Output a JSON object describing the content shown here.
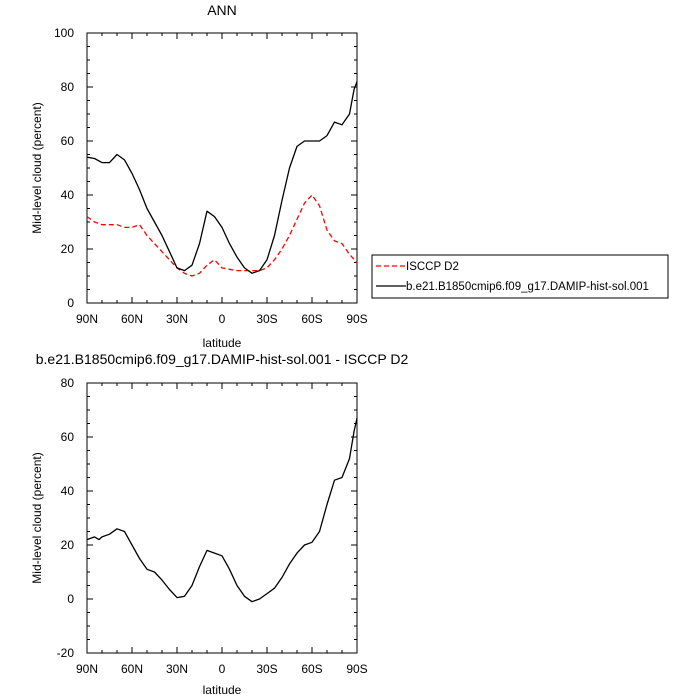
{
  "chart_data": [
    {
      "type": "line",
      "title": "ANN",
      "xlabel": "latitude",
      "ylabel": "Mid-level cloud (percent)",
      "x_tick_labels": [
        "90N",
        "60N",
        "30N",
        "0",
        "30S",
        "60S",
        "90S"
      ],
      "x_ticks": [
        90,
        60,
        30,
        0,
        -30,
        -60,
        -90
      ],
      "xlim": [
        90,
        -90
      ],
      "ylim": [
        0,
        100
      ],
      "y_ticks": [
        0,
        20,
        40,
        60,
        80,
        100
      ],
      "grid": false,
      "legend_position": "right",
      "series": [
        {
          "name": "ISCCP D2",
          "color": "#ff0000",
          "dash": "dashed",
          "x": [
            90,
            85,
            80,
            75,
            70,
            65,
            60,
            55,
            50,
            45,
            40,
            35,
            30,
            25,
            20,
            15,
            10,
            5,
            0,
            -5,
            -10,
            -15,
            -20,
            -25,
            -30,
            -35,
            -40,
            -45,
            -50,
            -55,
            -60,
            -65,
            -70,
            -75,
            -80,
            -85,
            -90
          ],
          "y": [
            32,
            30,
            29,
            29,
            29,
            28,
            28,
            29,
            25,
            22,
            19,
            16,
            13,
            11,
            10,
            11,
            14,
            16,
            13,
            12.5,
            12,
            12,
            12,
            12,
            13,
            16,
            20,
            25,
            31,
            37,
            40,
            36,
            27,
            23,
            22,
            18,
            15
          ]
        },
        {
          "name": "b.e21.B1850cmip6.f09_g17.DAMIP-hist-sol.001",
          "color": "#000000",
          "dash": "solid",
          "x": [
            90,
            85,
            80,
            75,
            70,
            65,
            60,
            55,
            50,
            45,
            40,
            35,
            30,
            25,
            20,
            15,
            10,
            5,
            0,
            -5,
            -10,
            -15,
            -20,
            -25,
            -30,
            -35,
            -40,
            -45,
            -50,
            -55,
            -60,
            -65,
            -70,
            -75,
            -80,
            -85,
            -88,
            -90
          ],
          "y": [
            54,
            53.5,
            52,
            52,
            55,
            53,
            48,
            42,
            35,
            30,
            25,
            19,
            13,
            12,
            14,
            22,
            34,
            32,
            28,
            22,
            17,
            13,
            11,
            12,
            16,
            25,
            38,
            50,
            58,
            60,
            60,
            60,
            62,
            67,
            66,
            70,
            79,
            82
          ]
        }
      ]
    },
    {
      "type": "line",
      "title": "b.e21.B1850cmip6.f09_g17.DAMIP-hist-sol.001 - ISCCP D2",
      "xlabel": "latitude",
      "ylabel": "Mid-level cloud (percent)",
      "x_tick_labels": [
        "90N",
        "60N",
        "30N",
        "0",
        "30S",
        "60S",
        "90S"
      ],
      "x_ticks": [
        90,
        60,
        30,
        0,
        -30,
        -60,
        -90
      ],
      "xlim": [
        90,
        -90
      ],
      "ylim": [
        -20,
        80
      ],
      "y_ticks": [
        -20,
        0,
        20,
        40,
        60,
        80
      ],
      "grid": false,
      "series": [
        {
          "color": "#000000",
          "dash": "solid",
          "x": [
            90,
            85,
            82,
            80,
            75,
            70,
            65,
            60,
            55,
            50,
            45,
            40,
            35,
            30,
            25,
            20,
            15,
            10,
            5,
            0,
            -5,
            -10,
            -15,
            -20,
            -25,
            -30,
            -35,
            -40,
            -45,
            -50,
            -55,
            -60,
            -65,
            -70,
            -75,
            -80,
            -85,
            -88,
            -90
          ],
          "y": [
            22,
            23,
            22,
            23,
            24,
            26,
            25,
            20,
            15,
            11,
            10,
            7,
            3.5,
            0.5,
            1,
            5,
            12,
            18,
            17,
            16,
            11,
            5,
            1,
            -1,
            0,
            2,
            4,
            8,
            13,
            17,
            20,
            21,
            25,
            35,
            44,
            45,
            52,
            62,
            67
          ]
        }
      ]
    }
  ]
}
